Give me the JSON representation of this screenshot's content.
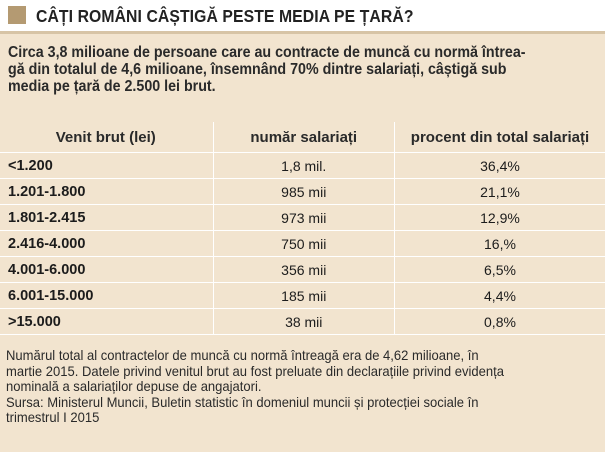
{
  "title": "CÂȚI ROMÂNI CÂȘTIGĂ PESTE MEDIA PE ȚARĂ?",
  "intro_lines": [
    "Circa 3,8 milioane de persoane care au contracte de muncă cu normă întrea-",
    "gă din totalul de 4,6 milioane, însemnând 70% dintre salariați, câștigă sub",
    "media pe țară de 2.500 lei brut."
  ],
  "table": {
    "headers": [
      "Venit brut (lei)",
      "număr salariați",
      "procent din total salariați"
    ],
    "rows": [
      [
        "<1.200",
        "1,8 mil.",
        "36,4%"
      ],
      [
        "1.201-1.800",
        "985 mii",
        "21,1%"
      ],
      [
        "1.801-2.415",
        "973 mii",
        "12,9%"
      ],
      [
        "2.416-4.000",
        "750 mii",
        "16,%"
      ],
      [
        "4.001-6.000",
        "356 mii",
        "6,5%"
      ],
      [
        "6.001-15.000",
        "185 mii",
        "4,4%"
      ],
      [
        ">15.000",
        "38 mii",
        "0,8%"
      ]
    ]
  },
  "footnote_lines": [
    "Numărul total al contractelor de muncă cu normă întreagă era de 4,62 milioane, în",
    "martie 2015. Datele privind venitul brut au fost preluate din declarațiile privind evidența",
    "nominală a salariaților depuse de angajatori.",
    "Sursa: Ministerul Muncii, Buletin statistic în domeniul muncii și protecției sociale în",
    "trimestrul I 2015"
  ],
  "colors": {
    "background": "#f2e4cf",
    "header_accent": "#b49a72",
    "rule": "#ffffff"
  }
}
